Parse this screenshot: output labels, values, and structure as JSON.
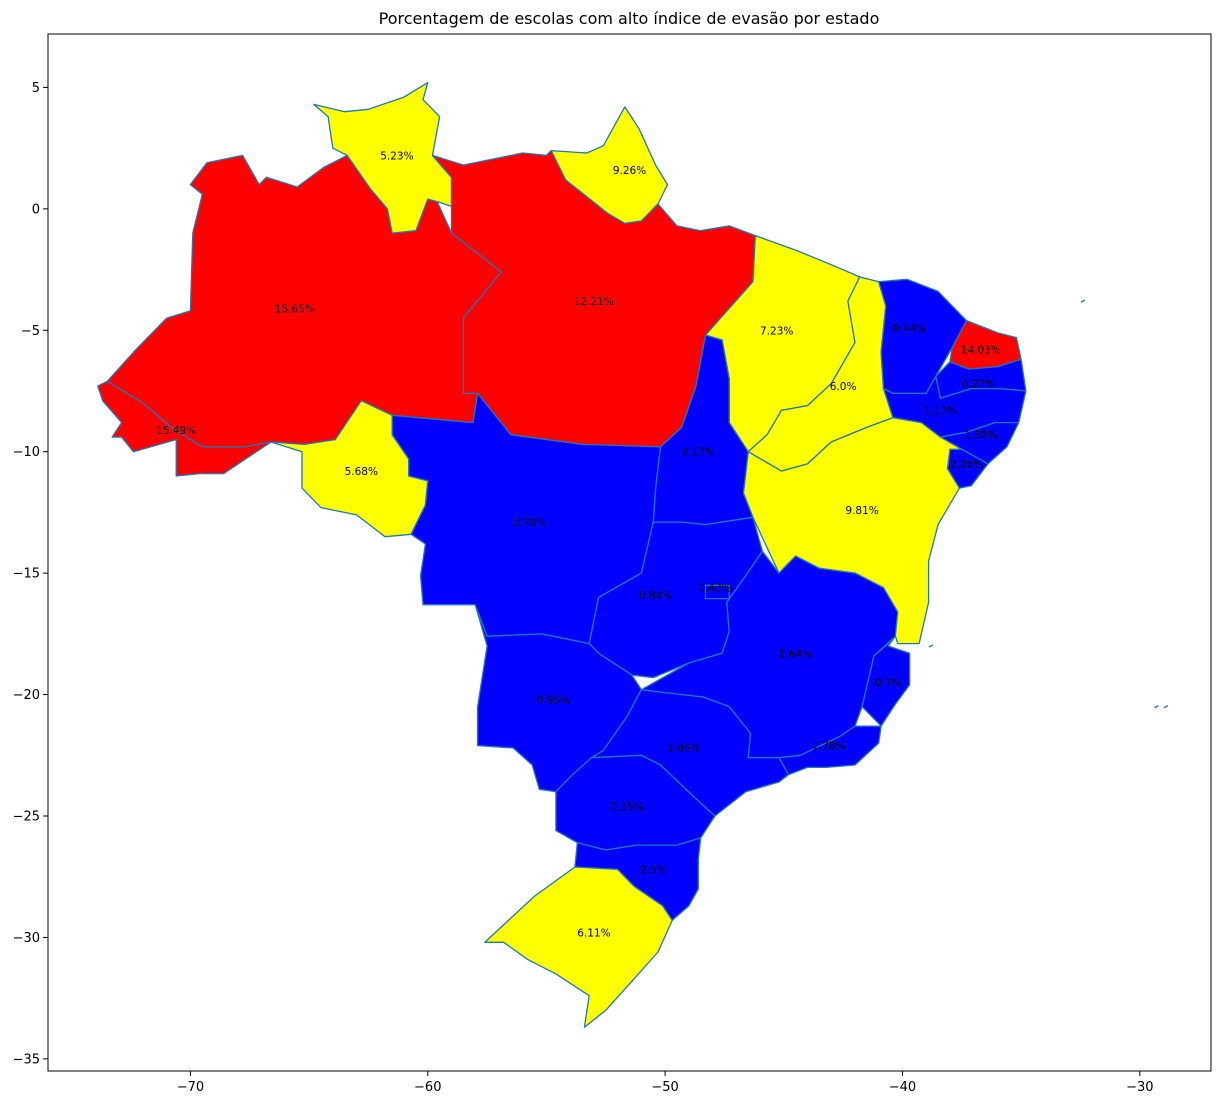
{
  "chart_data": {
    "type": "choropleth",
    "title": "Porcentagem de escolas com alto índice de evasão por estado",
    "xlim": [
      -76,
      -27
    ],
    "ylim": [
      -35.5,
      7.2
    ],
    "x_ticks": [
      -70,
      -60,
      -50,
      -40,
      -30
    ],
    "y_ticks": [
      5,
      0,
      -5,
      -10,
      -15,
      -20,
      -25,
      -30,
      -35
    ],
    "border_color": "#1f77b4",
    "category_colors": {
      "high": "#ff0000",
      "medium": "#ffff00",
      "low": "#0000ff"
    },
    "states": [
      {
        "id": "AM",
        "label": "15.65%",
        "value": 15.65,
        "category": "high",
        "lx": -65.6,
        "ly": -4.1
      },
      {
        "id": "AC",
        "label": "15.49%",
        "value": 15.49,
        "category": "high",
        "lx": -70.6,
        "ly": -9.1
      },
      {
        "id": "RR",
        "label": "5.23%",
        "value": 5.23,
        "category": "medium",
        "lx": -61.3,
        "ly": 2.2
      },
      {
        "id": "AP",
        "label": "9.26%",
        "value": 9.26,
        "category": "medium",
        "lx": -51.5,
        "ly": 1.6
      },
      {
        "id": "PA",
        "label": "12.21%",
        "value": 12.21,
        "category": "high",
        "lx": -53.0,
        "ly": -3.8
      },
      {
        "id": "MA",
        "label": "7.23%",
        "value": 7.23,
        "category": "medium",
        "lx": -45.3,
        "ly": -5.0
      },
      {
        "id": "PI",
        "label": "6.0%",
        "value": 6.0,
        "category": "medium",
        "lx": -42.5,
        "ly": -7.3
      },
      {
        "id": "CE",
        "label": "0.44%",
        "value": 0.44,
        "category": "low",
        "lx": -39.7,
        "ly": -4.9
      },
      {
        "id": "RN",
        "label": "14.03%",
        "value": 14.03,
        "category": "high",
        "lx": -36.7,
        "ly": -5.8
      },
      {
        "id": "PB",
        "label": "0.27%",
        "value": 0.27,
        "category": "low",
        "lx": -36.8,
        "ly": -7.2
      },
      {
        "id": "PE",
        "label": "1.17%",
        "value": 1.17,
        "category": "low",
        "lx": -38.4,
        "ly": -8.3
      },
      {
        "id": "AL",
        "label": "1.80%",
        "value": 1.8,
        "category": "low",
        "lx": -36.7,
        "ly": -9.3
      },
      {
        "id": "SE",
        "label": "2.26%",
        "value": 2.26,
        "category": "low",
        "lx": -37.3,
        "ly": -10.5
      },
      {
        "id": "BA",
        "label": "9.81%",
        "value": 9.81,
        "category": "medium",
        "lx": -41.7,
        "ly": -12.4
      },
      {
        "id": "TO",
        "label": "2.17%",
        "value": 2.17,
        "category": "low",
        "lx": -48.6,
        "ly": -10.0
      },
      {
        "id": "RO",
        "label": "5.68%",
        "value": 5.68,
        "category": "medium",
        "lx": -62.8,
        "ly": -10.8
      },
      {
        "id": "MT",
        "label": "3.78%",
        "value": 3.78,
        "category": "low",
        "lx": -55.7,
        "ly": -12.9
      },
      {
        "id": "GO",
        "label": "0.84%",
        "value": 0.84,
        "category": "low",
        "lx": -50.4,
        "ly": -15.9
      },
      {
        "id": "DF",
        "label": "0.43%",
        "value": 0.43,
        "category": "low",
        "lx": -47.9,
        "ly": -15.6
      },
      {
        "id": "MG",
        "label": "1.64%",
        "value": 1.64,
        "category": "low",
        "lx": -44.5,
        "ly": -18.3
      },
      {
        "id": "ES",
        "label": "0.7%",
        "value": 0.7,
        "category": "low",
        "lx": -40.6,
        "ly": -19.5
      },
      {
        "id": "MS",
        "label": "0.95%",
        "value": 0.95,
        "category": "low",
        "lx": -54.7,
        "ly": -20.2
      },
      {
        "id": "SP",
        "label": "1.05%",
        "value": 1.05,
        "category": "low",
        "lx": -49.2,
        "ly": -22.2
      },
      {
        "id": "RJ",
        "label": "1.78%",
        "value": 1.78,
        "category": "low",
        "lx": -43.1,
        "ly": -22.1
      },
      {
        "id": "PR",
        "label": "0.15%",
        "value": 0.15,
        "category": "low",
        "lx": -51.6,
        "ly": -24.6
      },
      {
        "id": "SC",
        "label": "2.5%",
        "value": 2.5,
        "category": "low",
        "lx": -50.5,
        "ly": -27.2
      },
      {
        "id": "RS",
        "label": "6.11%",
        "value": 6.11,
        "category": "medium",
        "lx": -53.0,
        "ly": -29.8
      }
    ]
  }
}
